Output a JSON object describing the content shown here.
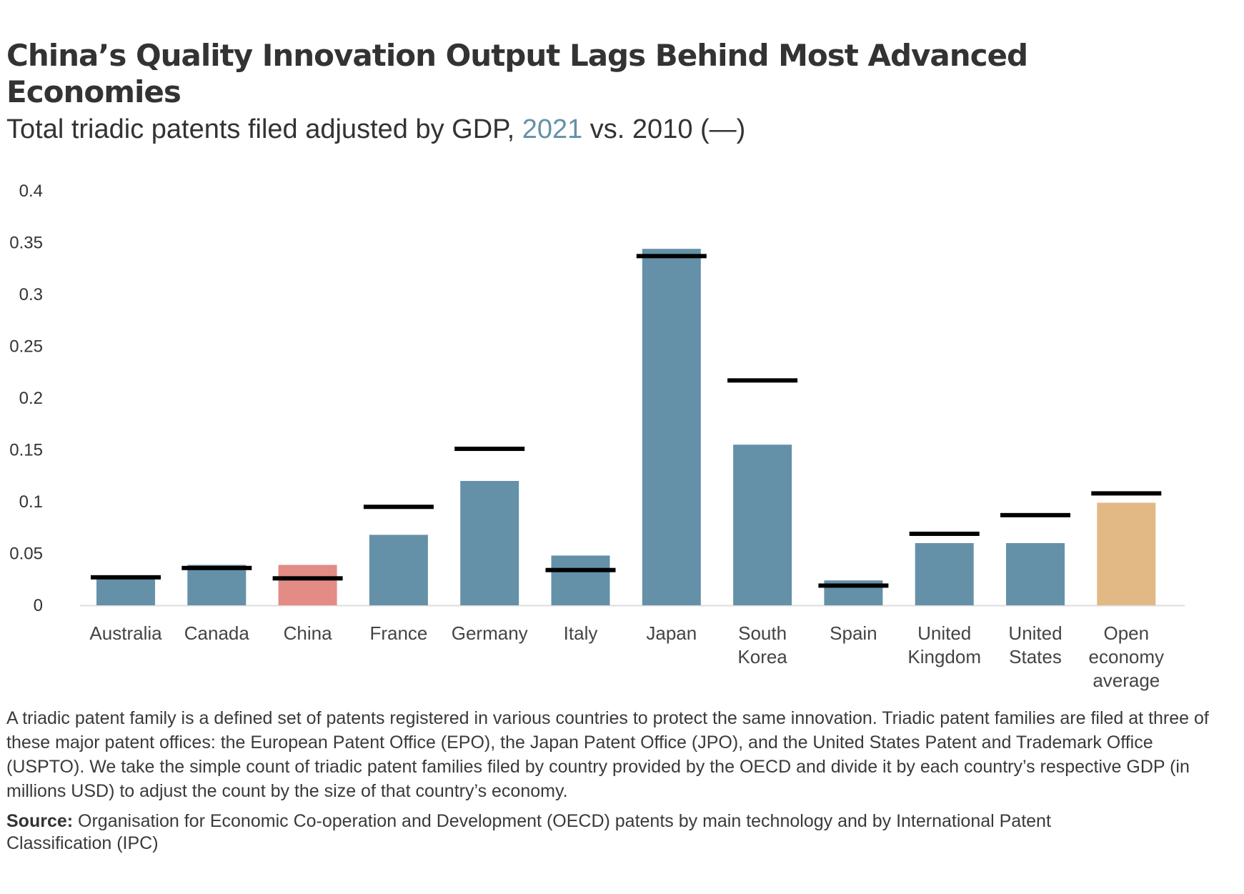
{
  "header": {
    "title": "China’s Quality Innovation Output Lags Behind Most Advanced Economies",
    "subtitle_prefix": "Total triadic patents filed adjusted by GDP, ",
    "subtitle_highlight": "2021",
    "subtitle_suffix": " vs. 2010 (—)"
  },
  "footer": {
    "note": "A triadic patent family is a defined set of patents registered in various countries to protect the same innovation. Triadic patent families are filed at three of these major patent offices: the European Patent Office (EPO), the Japan Patent Office (JPO), and the United States Patent and Trademark Office (USPTO). We take the simple count of triadic patent families filed by country provided by the OECD and divide it by each country’s respective GDP (in millions USD) to adjust the count by the size of that country’s economy.",
    "source_label": "Source:",
    "source_text": " Organisation for Economic Co-operation and Development (OECD)  patents by main technology and by International Patent Classification (IPC)"
  },
  "colors": {
    "bar_default": "#6491a8",
    "bar_china": "#e38b85",
    "bar_average": "#e2b985",
    "marker_2010": "#000000",
    "highlight_2021": "#6491a8",
    "axis": "#dddddd"
  },
  "chart_data": {
    "type": "bar",
    "title": "China’s Quality Innovation Output Lags Behind Most Advanced Economies",
    "subtitle": "Total triadic patents filed adjusted by GDP, 2021 vs. 2010 (—)",
    "xlabel": "",
    "ylabel": "",
    "ylim": [
      0,
      0.4
    ],
    "yticks": [
      0,
      0.05,
      0.1,
      0.15,
      0.2,
      0.25,
      0.3,
      0.35,
      0.4
    ],
    "ytick_labels": [
      "0",
      "0.05",
      "0.1",
      "0.15",
      "0.2",
      "0.25",
      "0.3",
      "0.35",
      "0.4"
    ],
    "grid": false,
    "legend": "in subtitle",
    "categories": [
      [
        "Australia"
      ],
      [
        "Canada"
      ],
      [
        "China"
      ],
      [
        "France"
      ],
      [
        "Germany"
      ],
      [
        "Italy"
      ],
      [
        "Japan"
      ],
      [
        "South",
        "Korea"
      ],
      [
        "Spain"
      ],
      [
        "United",
        "Kingdom"
      ],
      [
        "United",
        "States"
      ],
      [
        "Open",
        "economy",
        "average"
      ]
    ],
    "series": [
      {
        "name": "2021",
        "mark": "bar",
        "values": [
          0.026,
          0.039,
          0.039,
          0.068,
          0.12,
          0.048,
          0.344,
          0.155,
          0.024,
          0.06,
          0.06,
          0.099
        ],
        "highlight": [
          "default",
          "default",
          "china",
          "default",
          "default",
          "default",
          "default",
          "default",
          "default",
          "default",
          "default",
          "average"
        ]
      },
      {
        "name": "2010",
        "mark": "line-marker",
        "values": [
          0.027,
          0.036,
          0.026,
          0.095,
          0.151,
          0.034,
          0.337,
          0.217,
          0.019,
          0.069,
          0.087,
          0.108
        ]
      }
    ]
  }
}
